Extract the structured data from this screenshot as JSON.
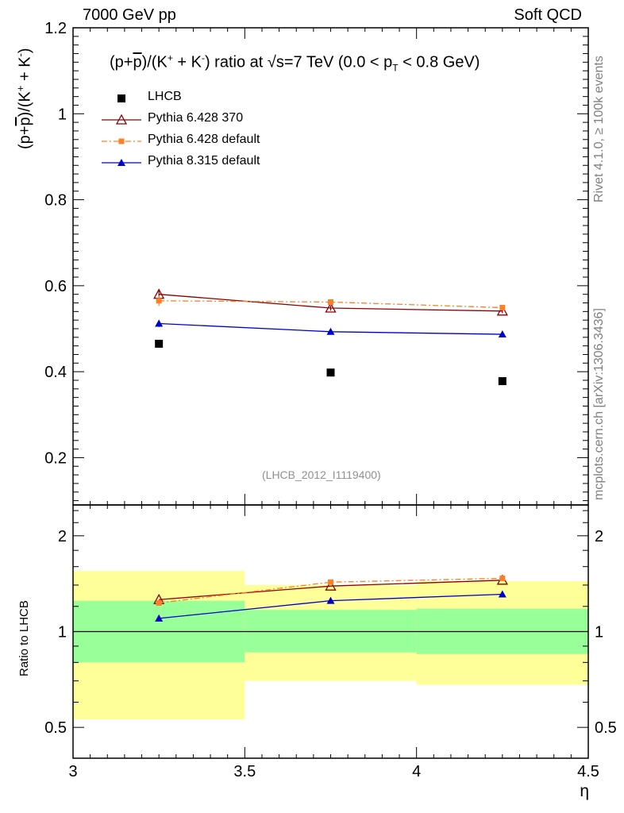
{
  "header": {
    "left": "7000 GeV pp",
    "right": "Soft QCD"
  },
  "side_labels": {
    "rivet": "Rivet 4.1.0, ≥ 100k events",
    "mcplots": "mcplots.cern.ch [arXiv:1306.3436]"
  },
  "analysis_tag": "(LHCB_2012_I1119400)",
  "colors": {
    "data": "#000000",
    "p6_370": "#8b0000",
    "p6_default": "#ff7f27",
    "p8_default": "#0000cd",
    "band_inner": "#99ff99",
    "band_outer": "#ffff99"
  },
  "chart_data": [
    {
      "type": "scatter",
      "panel": "main",
      "title": "(p+p̄)/(K⁺ + K⁻) ratio at √s=7 TeV (0.0 < pT < 0.8 GeV)",
      "title_parts": {
        "pre": "(p+",
        "pbar": "p",
        "mid1": ")/(K",
        "plus": "+",
        "mid2": " + K",
        "minus": "-",
        "mid3": ") ratio at √s=7 TeV (0.0 < p",
        "sub": "T",
        "post": " < 0.8 GeV)"
      },
      "ylabel": "(p+p̄)/(K⁺ + K⁻)",
      "ylabel_parts": {
        "pre": "(p+",
        "pbar": "p",
        "mid1": ")/(K",
        "plus": "+",
        "mid2": " + K",
        "minus": "-",
        "post": ")"
      },
      "xlim": [
        3.0,
        4.5
      ],
      "ylim": [
        0.09,
        1.2
      ],
      "yticks": [
        0.2,
        0.4,
        0.6,
        0.8,
        1.0,
        1.2
      ],
      "ytick_labels": [
        "0.2",
        "0.4",
        "0.6",
        "0.8",
        "1",
        "1.2"
      ],
      "x": [
        3.25,
        3.75,
        4.25
      ],
      "series": [
        {
          "name": "LHCB",
          "key": "data",
          "marker": "square",
          "values": [
            0.465,
            0.398,
            0.378
          ]
        },
        {
          "name": "Pythia 6.428 370",
          "key": "p6_370",
          "marker": "triangle-open",
          "line": "solid",
          "values": [
            0.58,
            0.548,
            0.541
          ],
          "errors": [
            0.012,
            0.006,
            0.005
          ]
        },
        {
          "name": "Pythia 6.428 default",
          "key": "p6_default",
          "marker": "square-small",
          "line": "dashdot",
          "values": [
            0.565,
            0.562,
            0.549
          ],
          "errors": [
            0.012,
            0.006,
            0.005
          ]
        },
        {
          "name": "Pythia 8.315 default",
          "key": "p8_default",
          "marker": "triangle",
          "line": "solid",
          "values": [
            0.512,
            0.493,
            0.487
          ],
          "errors": [
            0.008,
            0.004,
            0.004
          ]
        }
      ]
    },
    {
      "type": "line",
      "panel": "ratio",
      "ylabel": "Ratio to LHCB",
      "xlabel": "η",
      "xlim": [
        3.0,
        4.5
      ],
      "ylim": [
        0.4,
        2.5
      ],
      "xticks": [
        3.0,
        3.5,
        4.0,
        4.5
      ],
      "xtick_labels": [
        "3",
        "3.5",
        "4",
        "4.5"
      ],
      "yticks": [
        0.5,
        1.0,
        2.0
      ],
      "ytick_labels": [
        "0.5",
        "1",
        "2"
      ],
      "bins": [
        {
          "xlow": 3.0,
          "xhigh": 3.5,
          "inner": [
            0.8,
            1.25
          ],
          "outer": [
            0.53,
            1.55
          ]
        },
        {
          "xlow": 3.5,
          "xhigh": 4.0,
          "inner": [
            0.86,
            1.17
          ],
          "outer": [
            0.7,
            1.4
          ]
        },
        {
          "xlow": 4.0,
          "xhigh": 4.5,
          "inner": [
            0.85,
            1.18
          ],
          "outer": [
            0.68,
            1.44
          ]
        }
      ],
      "x": [
        3.25,
        3.75,
        4.25
      ],
      "series": [
        {
          "name": "Pythia 6.428 370",
          "key": "p6_370",
          "values": [
            1.26,
            1.39,
            1.45
          ]
        },
        {
          "name": "Pythia 6.428 default",
          "key": "p6_default",
          "values": [
            1.23,
            1.43,
            1.47
          ]
        },
        {
          "name": "Pythia 8.315 default",
          "key": "p8_default",
          "values": [
            1.1,
            1.25,
            1.31
          ]
        }
      ]
    }
  ]
}
